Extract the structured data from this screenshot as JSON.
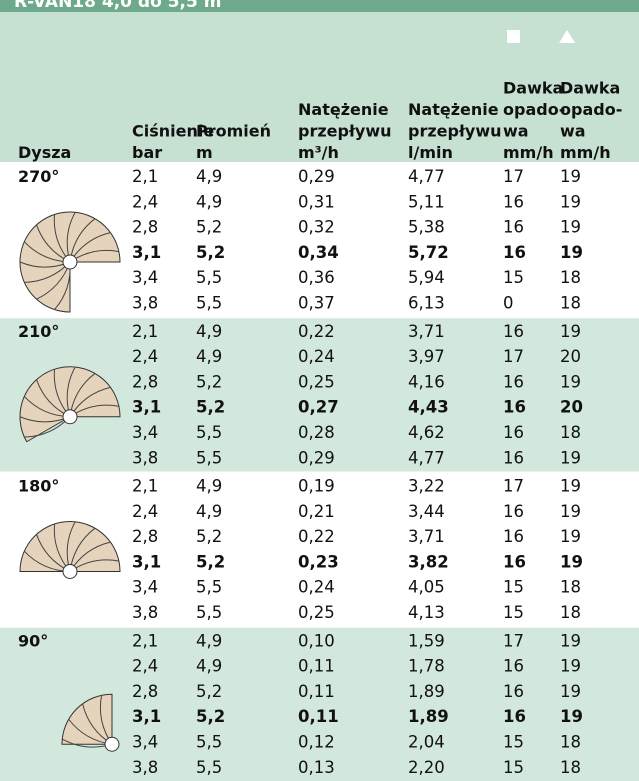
{
  "header": {
    "title": "R-VAN18 4,0 do 5,5 m",
    "columns": [
      [
        "Dysza"
      ],
      [
        "Ciśnienie",
        "bar"
      ],
      [
        "Promień",
        "m"
      ],
      [
        "Natężenie",
        "przepływu",
        "m³/h"
      ],
      [
        "Natężenie",
        "przepływu",
        "l/min"
      ],
      [
        "Dawka",
        "opado-",
        "wa",
        "mm/h"
      ],
      [
        "Dawka",
        "opado-",
        "wa",
        "mm/h"
      ]
    ]
  },
  "groups": [
    {
      "nozzle": "270°",
      "rows": [
        [
          "2,1",
          "4,9",
          "0,29",
          "4,77",
          "17",
          "19"
        ],
        [
          "2,4",
          "4,9",
          "0,31",
          "5,11",
          "16",
          "19"
        ],
        [
          "2,8",
          "5,2",
          "0,32",
          "5,38",
          "16",
          "19"
        ],
        [
          "3,1",
          "5,2",
          "0,34",
          "5,72",
          "16",
          "19"
        ],
        [
          "3,4",
          "5,5",
          "0,36",
          "5,94",
          "15",
          "18"
        ],
        [
          "3,8",
          "5,5",
          "0,37",
          "6,13",
          "0",
          "18"
        ]
      ]
    },
    {
      "nozzle": "210°",
      "rows": [
        [
          "2,1",
          "4,9",
          "0,22",
          "3,71",
          "16",
          "19"
        ],
        [
          "2,4",
          "4,9",
          "0,24",
          "3,97",
          "17",
          "20"
        ],
        [
          "2,8",
          "5,2",
          "0,25",
          "4,16",
          "16",
          "19"
        ],
        [
          "3,1",
          "5,2",
          "0,27",
          "4,43",
          "16",
          "20"
        ],
        [
          "3,4",
          "5,5",
          "0,28",
          "4,62",
          "16",
          "18"
        ],
        [
          "3,8",
          "5,5",
          "0,29",
          "4,77",
          "16",
          "19"
        ]
      ]
    },
    {
      "nozzle": "180°",
      "rows": [
        [
          "2,1",
          "4,9",
          "0,19",
          "3,22",
          "17",
          "19"
        ],
        [
          "2,4",
          "4,9",
          "0,21",
          "3,44",
          "16",
          "19"
        ],
        [
          "2,8",
          "5,2",
          "0,22",
          "3,71",
          "16",
          "19"
        ],
        [
          "3,1",
          "5,2",
          "0,23",
          "3,82",
          "16",
          "19"
        ],
        [
          "3,4",
          "5,5",
          "0,24",
          "4,05",
          "15",
          "18"
        ],
        [
          "3,8",
          "5,5",
          "0,25",
          "4,13",
          "15",
          "18"
        ]
      ]
    },
    {
      "nozzle": "90°",
      "rows": [
        [
          "2,1",
          "4,9",
          "0,10",
          "1,59",
          "17",
          "19"
        ],
        [
          "2,4",
          "4,9",
          "0,11",
          "1,78",
          "16",
          "19"
        ],
        [
          "2,8",
          "5,2",
          "0,11",
          "1,89",
          "16",
          "19"
        ],
        [
          "3,1",
          "5,2",
          "0,11",
          "1,89",
          "16",
          "19"
        ],
        [
          "3,4",
          "5,5",
          "0,12",
          "2,04",
          "15",
          "18"
        ],
        [
          "3,8",
          "5,5",
          "0,13",
          "2,20",
          "15",
          "18"
        ]
      ]
    }
  ]
}
